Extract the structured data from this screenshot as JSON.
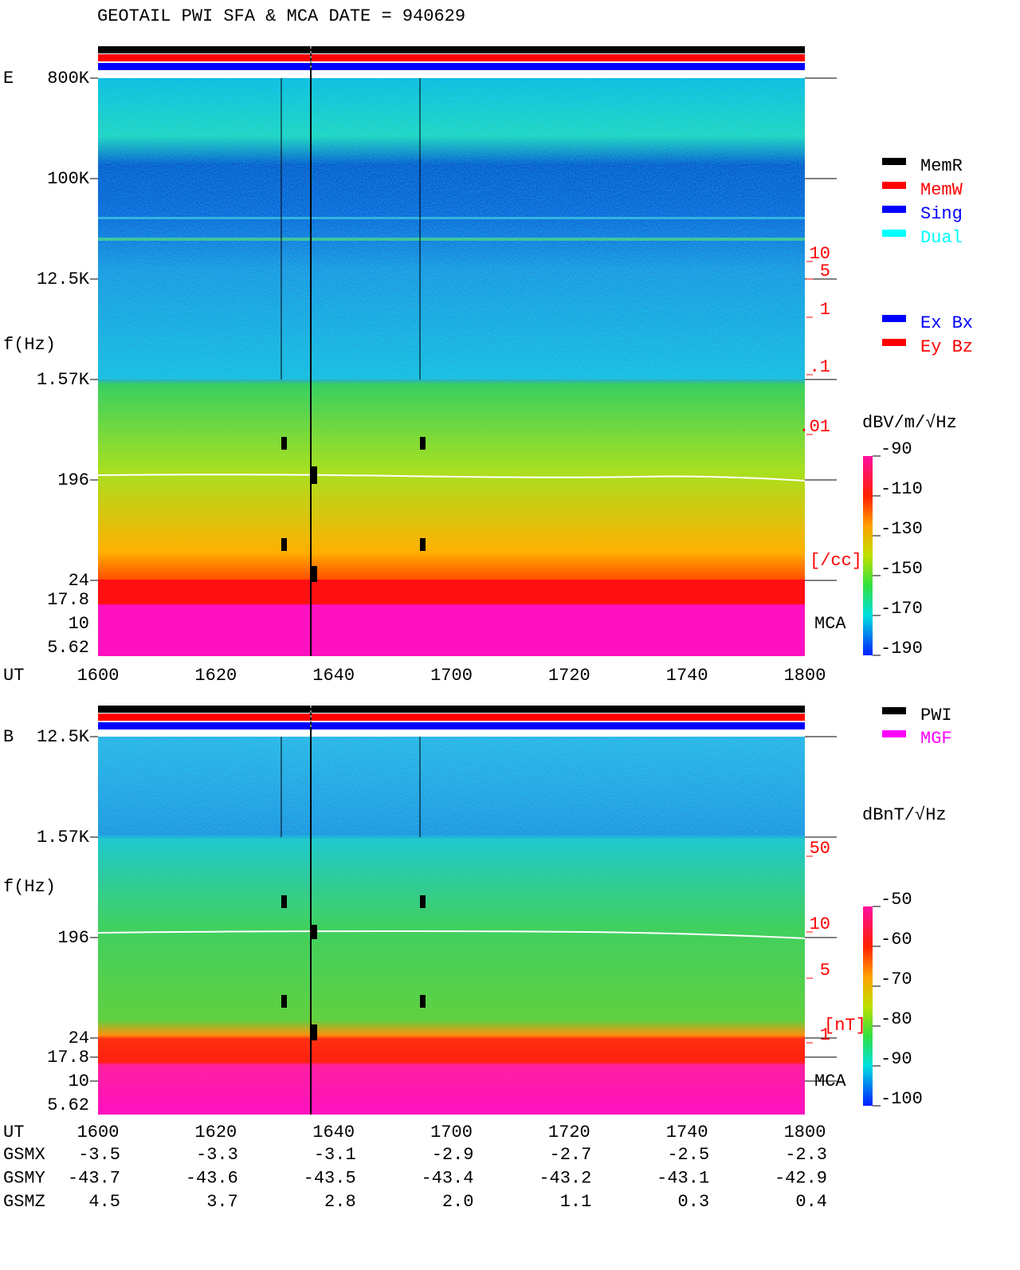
{
  "title": "GEOTAIL  PWI SFA & MCA   DATE = 940629",
  "panels": [
    {
      "label": "E",
      "freq_ticks": [
        "800K",
        "100K",
        "12.5K",
        "1.57K",
        "196",
        "24",
        "17.8",
        "10",
        "5.62"
      ],
      "axis_label": "f(Hz)",
      "time_label": "UT",
      "times": [
        "1600",
        "1620",
        "1640",
        "1700",
        "1720",
        "1740",
        "1800"
      ],
      "right_ticks": [
        "10",
        "5",
        "1",
        ".1",
        ".01"
      ],
      "right_unit": "[/cc]",
      "mca": "MCA",
      "colorbar": {
        "unit": "dBV/m/√Hz",
        "ticks": [
          -90,
          -110,
          -130,
          -150,
          -170,
          -190
        ]
      }
    },
    {
      "label": "B",
      "freq_ticks": [
        "12.5K",
        "1.57K",
        "196",
        "24",
        "17.8",
        "10",
        "5.62"
      ],
      "axis_label": "f(Hz)",
      "time_label": "UT",
      "times": [
        "1600",
        "1620",
        "1640",
        "1700",
        "1720",
        "1740",
        "1800"
      ],
      "right_ticks": [
        "50",
        "10",
        "5",
        "1"
      ],
      "right_unit": "[nT]",
      "mca": "MCA",
      "colorbar": {
        "unit": "dBnT/√Hz",
        "ticks": [
          -50,
          -60,
          -70,
          -80,
          -90,
          -100
        ]
      }
    }
  ],
  "legend_mode": [
    {
      "name": "MemR",
      "color": "#000000"
    },
    {
      "name": "MemW",
      "color": "#ff0000"
    },
    {
      "name": "Sing",
      "color": "#0000ff"
    },
    {
      "name": "Dual",
      "color": "#00ffff"
    }
  ],
  "legend_sensor": [
    {
      "name": "Ex Bx",
      "color": "#0000ff"
    },
    {
      "name": "Ey Bz",
      "color": "#ff0000"
    }
  ],
  "legend_source": [
    {
      "name": "PWI",
      "color": "#000000"
    },
    {
      "name": "MGF",
      "color": "#ff00ff"
    }
  ],
  "orbit": {
    "time_label": "UT",
    "rows": [
      {
        "name": "GSMX",
        "values": [
          "-3.5",
          "-3.3",
          "-3.1",
          "-2.9",
          "-2.7",
          "-2.5",
          "-2.3"
        ]
      },
      {
        "name": "GSMY",
        "values": [
          "-43.7",
          "-43.6",
          "-43.5",
          "-43.4",
          "-43.2",
          "-43.1",
          "-42.9"
        ]
      },
      {
        "name": "GSMZ",
        "values": [
          "4.5",
          "3.7",
          "2.8",
          "2.0",
          "1.1",
          "0.3",
          "0.4"
        ]
      }
    ]
  }
}
